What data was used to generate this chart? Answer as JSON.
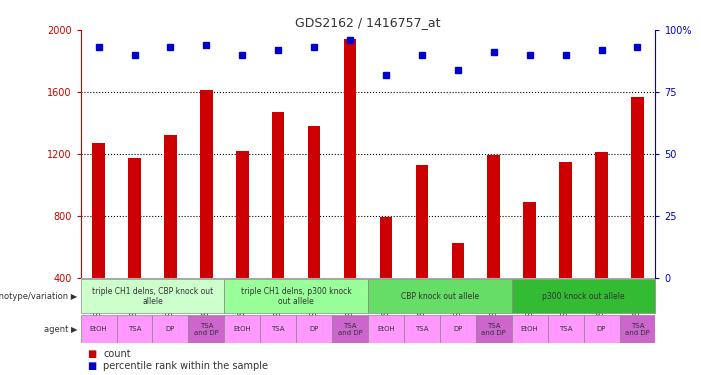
{
  "title": "GDS2162 / 1416757_at",
  "samples": [
    "GSM67339",
    "GSM67343",
    "GSM67347",
    "GSM67351",
    "GSM67341",
    "GSM67345",
    "GSM67349",
    "GSM67353",
    "GSM67338",
    "GSM67342",
    "GSM67346",
    "GSM67350",
    "GSM67340",
    "GSM67344",
    "GSM67348",
    "GSM67352"
  ],
  "counts": [
    1270,
    1175,
    1320,
    1610,
    1220,
    1470,
    1380,
    1940,
    790,
    1125,
    620,
    1190,
    890,
    1145,
    1210,
    1570
  ],
  "percentiles": [
    93,
    90,
    93,
    94,
    90,
    92,
    93,
    96,
    82,
    90,
    84,
    91,
    90,
    90,
    92,
    93
  ],
  "ylim_left": [
    400,
    2000
  ],
  "ylim_right": [
    0,
    100
  ],
  "yticks_left": [
    400,
    800,
    1200,
    1600,
    2000
  ],
  "yticks_right": [
    0,
    25,
    50,
    75,
    100
  ],
  "bar_color": "#cc0000",
  "dot_color": "#0000cc",
  "gridline_values": [
    800,
    1200,
    1600
  ],
  "genotype_groups": [
    {
      "label": "triple CH1 delns, CBP knock out\nallele",
      "start": 0,
      "end": 4,
      "color": "#ccffcc"
    },
    {
      "label": "triple CH1 delns, p300 knock\nout allele",
      "start": 4,
      "end": 8,
      "color": "#99ff99"
    },
    {
      "label": "CBP knock out allele",
      "start": 8,
      "end": 12,
      "color": "#66dd66"
    },
    {
      "label": "p300 knock out allele",
      "start": 12,
      "end": 16,
      "color": "#33bb33"
    }
  ],
  "agent_labels": [
    "EtOH",
    "TSA",
    "DP",
    "TSA\nand DP",
    "EtOH",
    "TSA",
    "DP",
    "TSA\nand DP",
    "EtOH",
    "TSA",
    "DP",
    "TSA\nand DP",
    "EtOH",
    "TSA",
    "DP",
    "TSA\nand DP"
  ],
  "agent_colors": [
    "#ff99ff",
    "#ff99ff",
    "#ff99ff",
    "#cc66cc"
  ],
  "left_axis_color": "#cc0000",
  "right_axis_color": "#0000cc",
  "bar_width": 0.35
}
